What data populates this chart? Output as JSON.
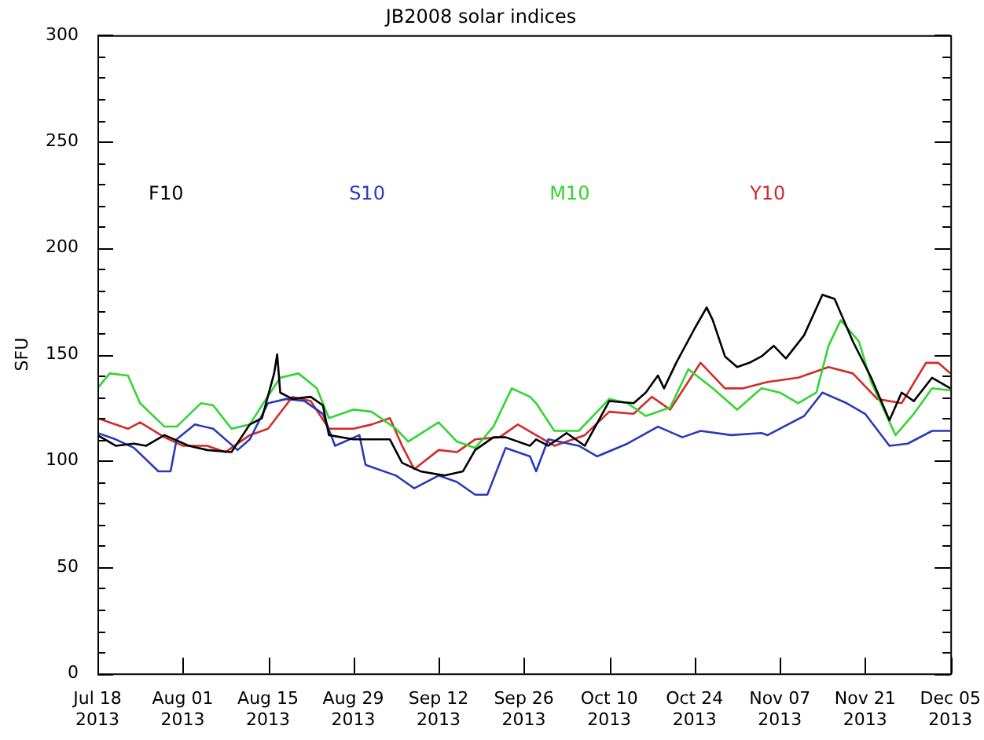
{
  "chart_data": {
    "type": "line",
    "title": "JB2008 solar indices",
    "ylabel": "SFU",
    "legend": "top",
    "marker": "none",
    "line_style": "solid",
    "grid": false,
    "ylim": [
      0,
      300
    ],
    "yticks": [
      0,
      {
        "value": 10,
        "label": null
      },
      {
        "value": 20,
        "label": null
      },
      {
        "value": 30,
        "label": null
      },
      {
        "value": 40,
        "label": null
      },
      50,
      {
        "value": 60,
        "label": null
      },
      {
        "value": 70,
        "label": null
      },
      {
        "value": 80,
        "label": null
      },
      {
        "value": 90,
        "label": null
      },
      100,
      {
        "value": 110,
        "label": null
      },
      {
        "value": 120,
        "label": null
      },
      {
        "value": 130,
        "label": null
      },
      {
        "value": 140,
        "label": null
      },
      150,
      {
        "value": 160,
        "label": null
      },
      {
        "value": 170,
        "label": null
      },
      {
        "value": 180,
        "label": null
      },
      {
        "value": 190,
        "label": null
      },
      200,
      {
        "value": 210,
        "label": null
      },
      {
        "value": 220,
        "label": null
      },
      {
        "value": 230,
        "label": null
      },
      {
        "value": 240,
        "label": null
      },
      250,
      {
        "value": 260,
        "label": null
      },
      {
        "value": 270,
        "label": null
      },
      {
        "value": 280,
        "label": null
      },
      {
        "value": 290,
        "label": null
      },
      300
    ],
    "xlim": [
      "2013-07-18",
      "2013-12-05"
    ],
    "xticks": [
      {
        "value": "2013-07-18",
        "label": "Jul 18\n2013"
      },
      {
        "value": "2013-08-01",
        "label": "Aug 01\n2013"
      },
      {
        "value": "2013-08-15",
        "label": "Aug 15\n2013"
      },
      {
        "value": "2013-08-29",
        "label": "Aug 29\n2013"
      },
      {
        "value": "2013-09-12",
        "label": "Sep 12\n2013"
      },
      {
        "value": "2013-09-26",
        "label": "Sep 26\n2013"
      },
      {
        "value": "2013-10-10",
        "label": "Oct 10\n2013"
      },
      {
        "value": "2013-10-24",
        "label": "Oct 24\n2013"
      },
      {
        "value": "2013-11-07",
        "label": "Nov 07\n2013"
      },
      {
        "value": "2013-11-21",
        "label": "Nov 21\n2013"
      },
      {
        "value": "2013-12-05",
        "label": "Dec 05\n2013"
      }
    ],
    "series": [
      {
        "name": "F10",
        "color": "#000000",
        "x": [
          "2013-07-18",
          "2013-07-21",
          "2013-07-24",
          "2013-07-26",
          "2013-07-29",
          "2013-08-02",
          "2013-08-05",
          "2013-08-09",
          "2013-08-12",
          "2013-08-14",
          "2013-08-16",
          "2013-08-16T12:00",
          "2013-08-17",
          "2013-08-19",
          "2013-08-22",
          "2013-08-24",
          "2013-08-25",
          "2013-08-29",
          "2013-09-01",
          "2013-09-04",
          "2013-09-06",
          "2013-09-09",
          "2013-09-13",
          "2013-09-16",
          "2013-09-18",
          "2013-09-21",
          "2013-09-23",
          "2013-09-27",
          "2013-09-28",
          "2013-09-30",
          "2013-10-03",
          "2013-10-06",
          "2013-10-10",
          "2013-10-14",
          "2013-10-16",
          "2013-10-18",
          "2013-10-19",
          "2013-10-21",
          "2013-10-24",
          "2013-10-26",
          "2013-10-27",
          "2013-10-29",
          "2013-10-31",
          "2013-11-02",
          "2013-11-04",
          "2013-11-06",
          "2013-11-08",
          "2013-11-11",
          "2013-11-14",
          "2013-11-16",
          "2013-11-19",
          "2013-11-22",
          "2013-11-25",
          "2013-11-27",
          "2013-11-29",
          "2013-12-02",
          "2013-12-05"
        ],
        "values": [
          112,
          107,
          108,
          107,
          112,
          107,
          105,
          104,
          117,
          120,
          141,
          150,
          132,
          129,
          130,
          126,
          112,
          110,
          110,
          110,
          99,
          95,
          93,
          95,
          105,
          111,
          111,
          107,
          110,
          107,
          113,
          107,
          128,
          127,
          132,
          140,
          134,
          146,
          162,
          172,
          166,
          149,
          144,
          146,
          149,
          154,
          148,
          159,
          178,
          176,
          156,
          139,
          119,
          132,
          128,
          139,
          134
        ]
      },
      {
        "name": "S10",
        "color": "#2a3ab8",
        "x": [
          "2013-07-18",
          "2013-07-21",
          "2013-07-24",
          "2013-07-28",
          "2013-07-30",
          "2013-07-31",
          "2013-08-03",
          "2013-08-06",
          "2013-08-10",
          "2013-08-12",
          "2013-08-15",
          "2013-08-18",
          "2013-08-21",
          "2013-08-24",
          "2013-08-26",
          "2013-08-30",
          "2013-08-31",
          "2013-09-05",
          "2013-09-08",
          "2013-09-12",
          "2013-09-15",
          "2013-09-18",
          "2013-09-20",
          "2013-09-23",
          "2013-09-27",
          "2013-09-28",
          "2013-09-30",
          "2013-10-05",
          "2013-10-08",
          "2013-10-13",
          "2013-10-18",
          "2013-10-22",
          "2013-10-25",
          "2013-10-30",
          "2013-11-04",
          "2013-11-05",
          "2013-11-11",
          "2013-11-14",
          "2013-11-18",
          "2013-11-21",
          "2013-11-25",
          "2013-11-28",
          "2013-12-02",
          "2013-12-05"
        ],
        "values": [
          113,
          110,
          106,
          95,
          95,
          110,
          117,
          115,
          105,
          110,
          127,
          129,
          128,
          122,
          107,
          112,
          98,
          93,
          87,
          93,
          90,
          84,
          84,
          106,
          102,
          95,
          110,
          107,
          102,
          108,
          116,
          111,
          114,
          112,
          113,
          112,
          121,
          132,
          127,
          122,
          107,
          108,
          114,
          114
        ]
      },
      {
        "name": "M10",
        "color": "#33d433",
        "x": [
          "2013-07-18",
          "2013-07-20",
          "2013-07-23",
          "2013-07-25",
          "2013-07-29",
          "2013-07-31",
          "2013-08-04",
          "2013-08-06",
          "2013-08-09",
          "2013-08-12",
          "2013-08-14",
          "2013-08-17",
          "2013-08-20",
          "2013-08-23",
          "2013-08-25",
          "2013-08-29",
          "2013-09-01",
          "2013-09-05",
          "2013-09-07",
          "2013-09-12",
          "2013-09-15",
          "2013-09-18",
          "2013-09-21",
          "2013-09-24",
          "2013-09-27",
          "2013-09-28",
          "2013-10-01",
          "2013-10-05",
          "2013-10-10",
          "2013-10-13",
          "2013-10-16",
          "2013-10-20",
          "2013-10-23",
          "2013-10-27",
          "2013-10-31",
          "2013-11-04",
          "2013-11-07",
          "2013-11-10",
          "2013-11-13",
          "2013-11-15",
          "2013-11-17",
          "2013-11-20",
          "2013-11-22",
          "2013-11-26",
          "2013-11-29",
          "2013-12-02",
          "2013-12-05"
        ],
        "values": [
          134,
          141,
          140,
          127,
          116,
          116,
          127,
          126,
          115,
          117,
          126,
          139,
          141,
          134,
          120,
          124,
          123,
          115,
          109,
          118,
          109,
          106,
          116,
          134,
          130,
          127,
          114,
          114,
          129,
          127,
          121,
          125,
          143,
          134,
          124,
          134,
          132,
          127,
          132,
          154,
          166,
          156,
          137,
          112,
          122,
          134,
          133
        ]
      },
      {
        "name": "Y10",
        "color": "#d42a2a",
        "x": [
          "2013-07-18",
          "2013-07-20",
          "2013-07-23",
          "2013-07-25",
          "2013-07-29",
          "2013-08-01",
          "2013-08-05",
          "2013-08-08",
          "2013-08-12",
          "2013-08-15",
          "2013-08-19",
          "2013-08-22",
          "2013-08-25",
          "2013-08-29",
          "2013-09-01",
          "2013-09-04",
          "2013-09-06",
          "2013-09-08",
          "2013-09-12",
          "2013-09-15",
          "2013-09-18",
          "2013-09-22",
          "2013-09-25",
          "2013-09-28",
          "2013-10-01",
          "2013-10-06",
          "2013-10-10",
          "2013-10-14",
          "2013-10-17",
          "2013-10-20",
          "2013-10-25",
          "2013-10-29",
          "2013-11-01",
          "2013-11-05",
          "2013-11-10",
          "2013-11-15",
          "2013-11-19",
          "2013-11-23",
          "2013-11-27",
          "2013-12-01",
          "2013-12-03",
          "2013-12-05"
        ],
        "values": [
          120,
          118,
          115,
          118,
          111,
          107,
          107,
          104,
          112,
          115,
          130,
          128,
          115,
          115,
          117,
          120,
          107,
          96,
          105,
          104,
          110,
          111,
          117,
          112,
          107,
          112,
          123,
          122,
          130,
          124,
          146,
          134,
          134,
          137,
          139,
          144,
          141,
          129,
          127,
          146,
          146,
          141
        ]
      }
    ]
  }
}
